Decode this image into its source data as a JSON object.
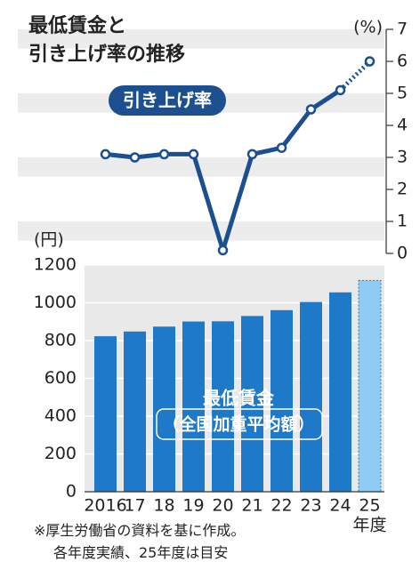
{
  "title": [
    "最低賃金と",
    "引き上げ率の推移"
  ],
  "note": [
    "※厚生労働省の資料を基に作成。",
    "各年度実績、25年度は目安"
  ],
  "chart_data": [
    {
      "type": "line",
      "unit_label": "(%)",
      "label": "引き上げ率",
      "values": [
        3.1,
        3.0,
        3.1,
        3.1,
        0.1,
        3.1,
        3.3,
        4.5,
        5.1,
        6.0
      ],
      "color": "#1b4f8f",
      "dotted_last_segment": true,
      "ylim": [
        0,
        7
      ],
      "yticks": [
        0,
        1,
        2,
        3,
        4,
        5,
        6,
        7
      ],
      "axis_side": "right"
    },
    {
      "type": "bar",
      "unit_label": "(円)",
      "x_unit": "年度",
      "label": [
        "最低賃金",
        "（全国加重平均額）"
      ],
      "categories": [
        "2016",
        "17",
        "18",
        "19",
        "20",
        "21",
        "22",
        "23",
        "24",
        "25"
      ],
      "values": [
        823,
        848,
        874,
        901,
        902,
        930,
        961,
        1004,
        1055,
        1118
      ],
      "colors": [
        "#1f79c9",
        "#1f79c9",
        "#1f79c9",
        "#1f79c9",
        "#1f79c9",
        "#1f79c9",
        "#1f79c9",
        "#1f79c9",
        "#1f79c9",
        "#8fcbf2"
      ],
      "dashed_last": true,
      "ylim": [
        0,
        1200
      ],
      "yticks": [
        0,
        200,
        400,
        600,
        800,
        1000,
        1200
      ],
      "grid": true
    }
  ]
}
